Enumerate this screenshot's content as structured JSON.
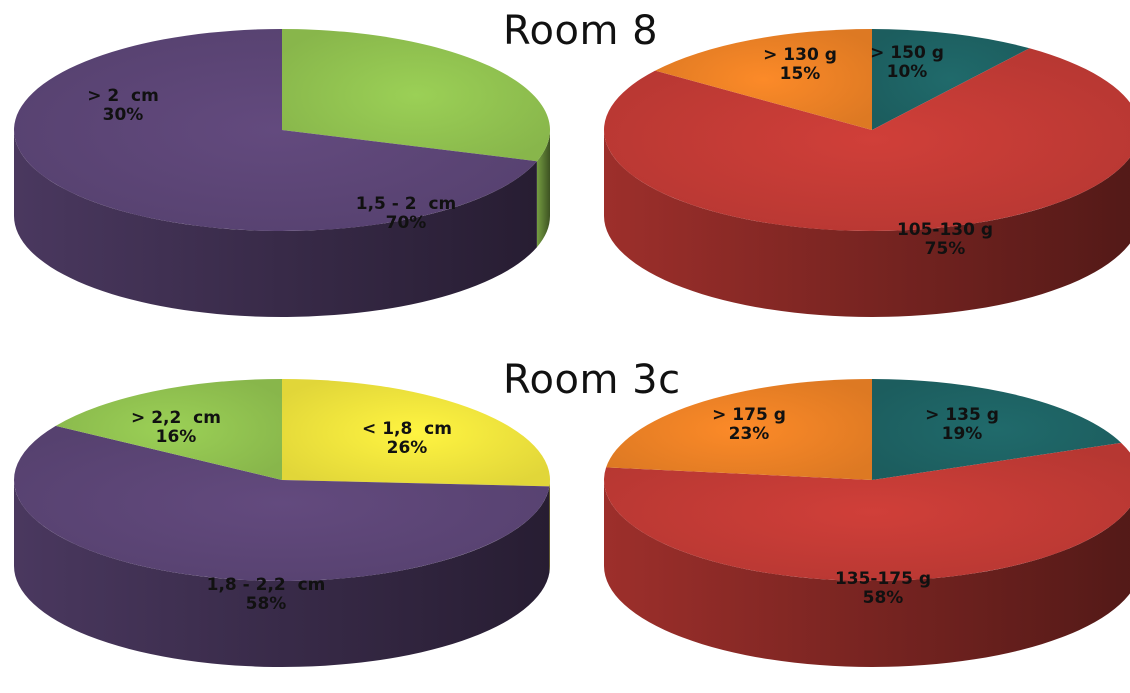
{
  "rooms": [
    {
      "title": "Room 8"
    },
    {
      "title": "Room 3c"
    }
  ],
  "chart_data": [
    {
      "type": "pie",
      "room": "Room 8",
      "slices": [
        {
          "label": "> 2  cm",
          "percent_label": "30%",
          "value": 30,
          "color": "#92c451"
        },
        {
          "label": "1,5 - 2  cm",
          "percent_label": "70%",
          "value": 70,
          "color": "#5d4677"
        }
      ]
    },
    {
      "type": "pie",
      "room": "Room 8",
      "slices": [
        {
          "label": "> 150 g",
          "percent_label": "10%",
          "value": 10,
          "color": "#1e6465"
        },
        {
          "label": "105-130 g",
          "percent_label": "75%",
          "value": 75,
          "color": "#c43b36"
        },
        {
          "label": "> 130 g",
          "percent_label": "15%",
          "value": 15,
          "color": "#ee8226"
        }
      ]
    },
    {
      "type": "pie",
      "room": "Room 3c",
      "slices": [
        {
          "label": "< 1,8  cm",
          "percent_label": "26%",
          "value": 26,
          "color": "#f2e63d"
        },
        {
          "label": "1,8 - 2,2  cm",
          "percent_label": "58%",
          "value": 58,
          "color": "#5d4677"
        },
        {
          "label": "> 2,2  cm",
          "percent_label": "16%",
          "value": 16,
          "color": "#92c451"
        }
      ]
    },
    {
      "type": "pie",
      "room": "Room 3c",
      "slices": [
        {
          "label": "> 135 g",
          "percent_label": "19%",
          "value": 19,
          "color": "#1e6465"
        },
        {
          "label": "135-175 g",
          "percent_label": "58%",
          "value": 58,
          "color": "#c43b36"
        },
        {
          "label": "> 175 g",
          "percent_label": "23%",
          "value": 23,
          "color": "#ee8226"
        }
      ]
    }
  ]
}
